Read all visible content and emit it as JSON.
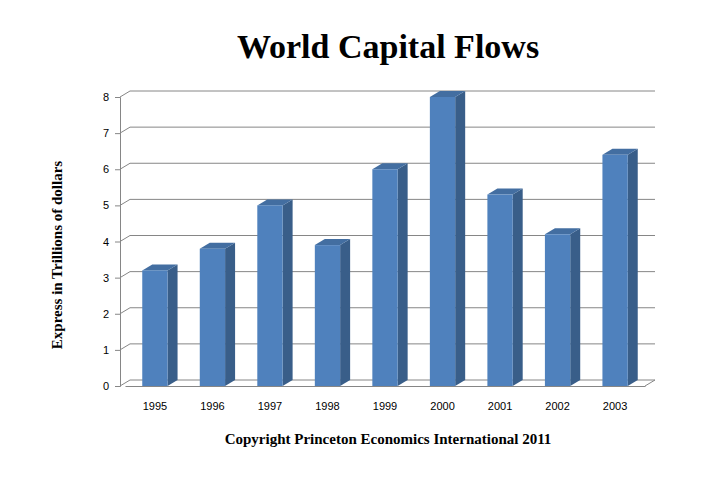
{
  "chart_data": {
    "type": "bar",
    "title": "World Capital Flows",
    "y_label": "Express in Trillions of dollars",
    "footer": "Copyright Princeton Economics International 2011",
    "categories": [
      "1995",
      "1996",
      "1997",
      "1998",
      "1999",
      "2000",
      "2001",
      "2002",
      "2003"
    ],
    "values": [
      3.2,
      3.8,
      5.0,
      3.9,
      6.0,
      8.0,
      5.3,
      4.2,
      6.4
    ],
    "color": "#4f81bd",
    "ylim": [
      0,
      8
    ],
    "yticks": [
      0,
      1,
      2,
      3,
      4,
      5,
      6,
      7,
      8
    ],
    "grid": true
  }
}
